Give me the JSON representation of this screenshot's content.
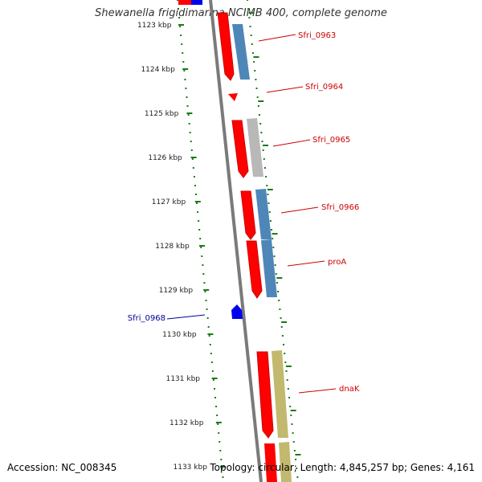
{
  "title": "Shewanella frigidimarina NCIMB 400, complete genome",
  "accession_text": "Accession: NC_008345",
  "summary_text": "Topology: circular; Length: 4,845,257 bp; Genes: 4,161",
  "scale_labels": [
    "1123 kbp",
    "1124 kbp",
    "1125 kbp",
    "1126 kbp",
    "1127 kbp",
    "1128 kbp",
    "1129 kbp",
    "1130 kbp",
    "1131 kbp",
    "1132 kbp",
    "1133 kbp"
  ],
  "gene_labels": [
    {
      "name": "Sfri_0963",
      "color": "#cc0000",
      "side": "right"
    },
    {
      "name": "Sfri_0964",
      "color": "#cc0000",
      "side": "right"
    },
    {
      "name": "Sfri_0965",
      "color": "#cc0000",
      "side": "right"
    },
    {
      "name": "Sfri_0966",
      "color": "#cc0000",
      "side": "right"
    },
    {
      "name": "proA",
      "color": "#cc0000",
      "side": "right"
    },
    {
      "name": "Sfri_0968",
      "color": "#000099",
      "side": "left"
    },
    {
      "name": "dnaK",
      "color": "#cc0000",
      "side": "right"
    }
  ],
  "colors": {
    "forward_gene": "#ff0000",
    "reverse_gene": "#0000ee",
    "cog_blue": "#4f86b8",
    "cog_gray": "#b8b8b8",
    "cog_olive": "#c2b96e",
    "backbone": "#7a7a7a",
    "tick_green": "#1a7a1a"
  }
}
